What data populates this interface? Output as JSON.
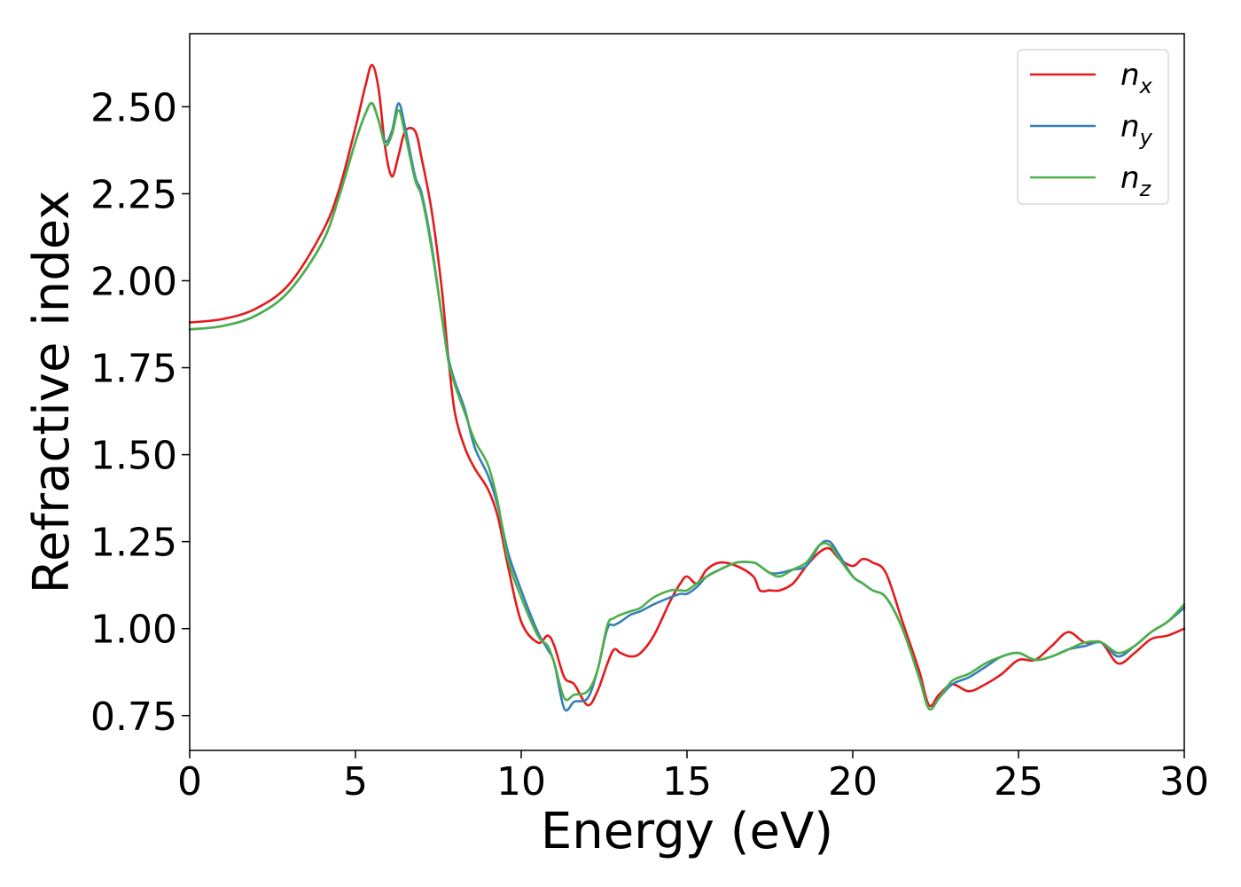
{
  "chart_data": {
    "type": "line",
    "title": "",
    "xlabel": "Energy (eV)",
    "ylabel": "Refractive index",
    "xlim": [
      0,
      30
    ],
    "ylim": [
      0.65,
      2.71
    ],
    "xticks": [
      0,
      5,
      10,
      15,
      20,
      25,
      30
    ],
    "xtick_labels": [
      "0",
      "5",
      "10",
      "15",
      "20",
      "25",
      "30"
    ],
    "yticks": [
      0.75,
      1.0,
      1.25,
      1.5,
      1.75,
      2.0,
      2.25,
      2.5
    ],
    "ytick_labels": [
      "0.75",
      "1.00",
      "1.25",
      "1.50",
      "1.75",
      "2.00",
      "2.25",
      "2.50"
    ],
    "grid": false,
    "legend_position": "top-right",
    "series": [
      {
        "name": "n_x",
        "label_main": "n",
        "label_sub": "x",
        "color": "#e41a1c",
        "x": [
          0,
          1,
          2,
          3,
          4,
          4.5,
          5,
          5.3,
          5.5,
          5.7,
          5.9,
          6.1,
          6.3,
          6.5,
          6.8,
          7.0,
          7.3,
          7.6,
          7.8,
          8.0,
          8.3,
          8.6,
          9.0,
          9.3,
          9.6,
          10.0,
          10.5,
          10.8,
          11.0,
          11.3,
          11.6,
          12.0,
          12.3,
          12.6,
          12.8,
          13.0,
          13.3,
          13.6,
          14.0,
          14.5,
          14.8,
          15.0,
          15.3,
          15.6,
          16.0,
          16.5,
          17.0,
          17.2,
          17.5,
          17.8,
          18.2,
          18.6,
          19.0,
          19.3,
          19.6,
          20.0,
          20.3,
          20.6,
          21.0,
          21.5,
          22.0,
          22.3,
          22.6,
          23.0,
          23.5,
          24.0,
          24.5,
          25.0,
          25.5,
          26.0,
          26.5,
          27.0,
          27.5,
          28.0,
          28.5,
          29.0,
          29.5,
          30.0
        ],
        "y": [
          1.88,
          1.89,
          1.92,
          1.99,
          2.14,
          2.26,
          2.44,
          2.56,
          2.62,
          2.55,
          2.38,
          2.3,
          2.36,
          2.43,
          2.43,
          2.35,
          2.2,
          1.98,
          1.78,
          1.62,
          1.52,
          1.46,
          1.4,
          1.32,
          1.18,
          1.02,
          0.96,
          0.98,
          0.95,
          0.86,
          0.84,
          0.78,
          0.82,
          0.9,
          0.94,
          0.93,
          0.92,
          0.93,
          0.98,
          1.08,
          1.13,
          1.15,
          1.13,
          1.17,
          1.19,
          1.18,
          1.15,
          1.11,
          1.11,
          1.11,
          1.13,
          1.18,
          1.22,
          1.23,
          1.2,
          1.18,
          1.2,
          1.19,
          1.16,
          1.02,
          0.88,
          0.78,
          0.81,
          0.84,
          0.82,
          0.84,
          0.87,
          0.91,
          0.91,
          0.95,
          0.99,
          0.96,
          0.96,
          0.9,
          0.93,
          0.97,
          0.98,
          1.0
        ]
      },
      {
        "name": "n_y",
        "label_main": "n",
        "label_sub": "y",
        "color": "#377eb8",
        "x": [
          0,
          1,
          2,
          3,
          4,
          4.5,
          5,
          5.3,
          5.5,
          5.7,
          5.9,
          6.1,
          6.3,
          6.5,
          6.8,
          7.0,
          7.3,
          7.6,
          7.8,
          8.0,
          8.3,
          8.6,
          9.0,
          9.3,
          9.6,
          10.0,
          10.5,
          10.8,
          11.0,
          11.3,
          11.6,
          12.0,
          12.3,
          12.6,
          12.8,
          13.0,
          13.3,
          13.6,
          14.0,
          14.5,
          14.8,
          15.0,
          15.3,
          15.6,
          16.0,
          16.5,
          17.0,
          17.2,
          17.5,
          17.8,
          18.2,
          18.6,
          19.0,
          19.3,
          19.6,
          20.0,
          20.3,
          20.6,
          21.0,
          21.5,
          22.0,
          22.3,
          22.6,
          23.0,
          23.5,
          24.0,
          24.5,
          25.0,
          25.5,
          26.0,
          26.5,
          27.0,
          27.5,
          28.0,
          28.5,
          29.0,
          29.5,
          30.0
        ],
        "y": [
          1.86,
          1.87,
          1.9,
          1.97,
          2.11,
          2.24,
          2.4,
          2.48,
          2.51,
          2.46,
          2.4,
          2.43,
          2.51,
          2.44,
          2.3,
          2.25,
          2.1,
          1.9,
          1.78,
          1.71,
          1.63,
          1.52,
          1.44,
          1.35,
          1.22,
          1.11,
          0.99,
          0.94,
          0.9,
          0.77,
          0.79,
          0.8,
          0.88,
          1.0,
          1.01,
          1.02,
          1.04,
          1.05,
          1.07,
          1.09,
          1.1,
          1.1,
          1.12,
          1.15,
          1.17,
          1.19,
          1.19,
          1.18,
          1.16,
          1.16,
          1.17,
          1.18,
          1.24,
          1.25,
          1.21,
          1.15,
          1.13,
          1.11,
          1.09,
          1.0,
          0.86,
          0.77,
          0.8,
          0.84,
          0.86,
          0.89,
          0.92,
          0.93,
          0.91,
          0.92,
          0.94,
          0.95,
          0.96,
          0.92,
          0.95,
          0.99,
          1.02,
          1.06
        ]
      },
      {
        "name": "n_z",
        "label_main": "n",
        "label_sub": "z",
        "color": "#4daf4a",
        "x": [
          0,
          1,
          2,
          3,
          4,
          4.5,
          5,
          5.3,
          5.5,
          5.7,
          5.9,
          6.1,
          6.3,
          6.5,
          6.8,
          7.0,
          7.3,
          7.6,
          7.8,
          8.0,
          8.3,
          8.6,
          9.0,
          9.3,
          9.6,
          10.0,
          10.5,
          10.8,
          11.0,
          11.3,
          11.6,
          12.0,
          12.3,
          12.6,
          12.8,
          13.0,
          13.3,
          13.6,
          14.0,
          14.5,
          14.8,
          15.0,
          15.3,
          15.6,
          16.0,
          16.5,
          17.0,
          17.2,
          17.5,
          17.8,
          18.2,
          18.6,
          19.0,
          19.3,
          19.6,
          20.0,
          20.3,
          20.6,
          21.0,
          21.5,
          22.0,
          22.3,
          22.6,
          23.0,
          23.5,
          24.0,
          24.5,
          25.0,
          25.5,
          26.0,
          26.5,
          27.0,
          27.5,
          28.0,
          28.5,
          29.0,
          29.5,
          30.0
        ],
        "y": [
          1.86,
          1.87,
          1.9,
          1.97,
          2.11,
          2.24,
          2.4,
          2.48,
          2.51,
          2.46,
          2.39,
          2.42,
          2.49,
          2.42,
          2.29,
          2.24,
          2.09,
          1.9,
          1.77,
          1.7,
          1.62,
          1.54,
          1.47,
          1.36,
          1.2,
          1.09,
          0.98,
          0.95,
          0.9,
          0.8,
          0.81,
          0.82,
          0.88,
          1.01,
          1.03,
          1.04,
          1.05,
          1.06,
          1.09,
          1.11,
          1.11,
          1.11,
          1.13,
          1.15,
          1.17,
          1.19,
          1.19,
          1.18,
          1.16,
          1.15,
          1.17,
          1.19,
          1.24,
          1.24,
          1.2,
          1.15,
          1.13,
          1.11,
          1.09,
          1.0,
          0.86,
          0.77,
          0.8,
          0.85,
          0.87,
          0.9,
          0.92,
          0.93,
          0.91,
          0.92,
          0.94,
          0.96,
          0.96,
          0.93,
          0.95,
          0.99,
          1.02,
          1.07
        ]
      }
    ]
  }
}
